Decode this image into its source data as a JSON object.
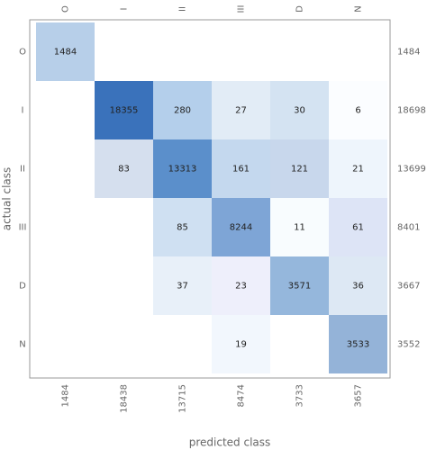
{
  "chart_data": {
    "type": "heatmap",
    "x_label": "predicted class",
    "y_label": "actual class",
    "columns": [
      "O",
      "I",
      "II",
      "III",
      "D",
      "N"
    ],
    "rows": [
      "O",
      "I",
      "II",
      "III",
      "D",
      "N"
    ],
    "z": [
      [
        1484,
        null,
        null,
        null,
        null,
        null
      ],
      [
        null,
        18355,
        280,
        27,
        30,
        6
      ],
      [
        null,
        83,
        13313,
        161,
        121,
        21
      ],
      [
        null,
        null,
        85,
        8244,
        11,
        61
      ],
      [
        null,
        null,
        37,
        23,
        3571,
        36
      ],
      [
        null,
        null,
        null,
        19,
        null,
        3533
      ]
    ],
    "colors": [
      [
        "#b7cfe9",
        null,
        null,
        null,
        null,
        null
      ],
      [
        null,
        "#3a72bb",
        "#b4cfeb",
        "#e2ecf6",
        "#d4e3f2",
        "#fbfdff"
      ],
      [
        null,
        "#d5dfee",
        "#5b8fcb",
        "#c4d8ee",
        "#c8d7ec",
        "#eef5fc"
      ],
      [
        null,
        null,
        "#cfe0f2",
        "#7ea5d6",
        "#f8fcfe",
        "#dde4f6"
      ],
      [
        null,
        null,
        "#e8f0f9",
        "#eeeffb",
        "#95b7dc",
        "#dde8f4"
      ],
      [
        null,
        null,
        null,
        "#f2f7fd",
        null,
        "#94b3d8"
      ]
    ],
    "row_totals": [
      1484,
      18698,
      13699,
      8401,
      3667,
      3552
    ],
    "column_totals": [
      1484,
      18438,
      13715,
      8474,
      3733,
      3657
    ]
  }
}
